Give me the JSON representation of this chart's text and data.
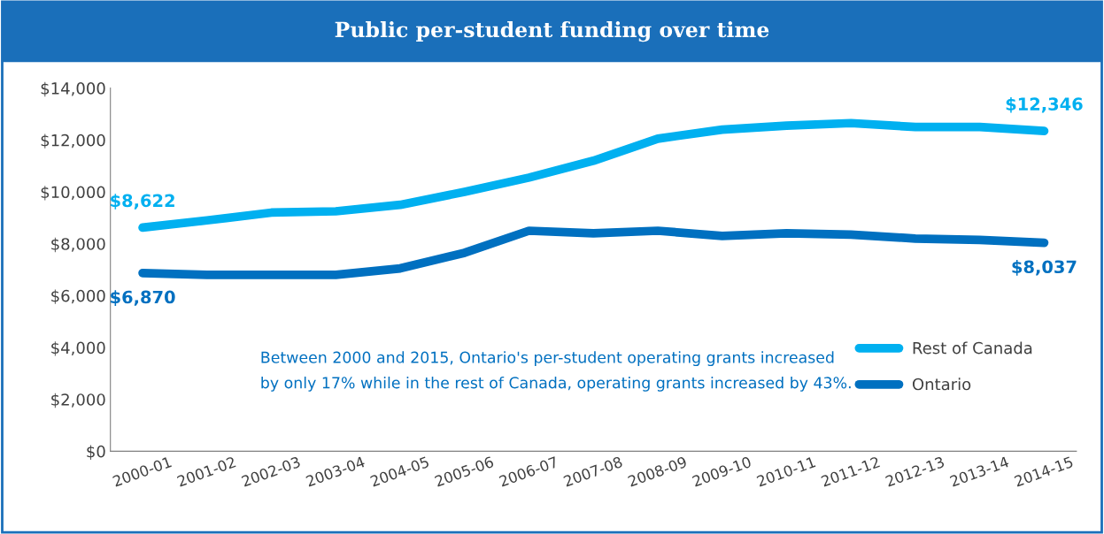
{
  "chart_data": {
    "type": "line",
    "title": "Public per-student funding over time",
    "categories": [
      "2000-01",
      "2001-02",
      "2002-03",
      "2003-04",
      "2004-05",
      "2005-06",
      "2006-07",
      "2007-08",
      "2008-09",
      "2009-10",
      "2010-11",
      "2011-12",
      "2012-13",
      "2013-14",
      "2014-15"
    ],
    "series": [
      {
        "name": "Rest of Canada",
        "color": "#00b0f0",
        "values": [
          8622,
          8900,
          9200,
          9250,
          9500,
          10000,
          10550,
          11200,
          12050,
          12400,
          12550,
          12650,
          12500,
          12500,
          12346
        ],
        "value_labels": [
          "$8,622",
          null,
          null,
          null,
          null,
          null,
          null,
          null,
          null,
          null,
          null,
          null,
          null,
          null,
          "$12,346"
        ]
      },
      {
        "name": "Ontario",
        "color": "#0070c0",
        "values": [
          6870,
          6800,
          6800,
          6800,
          7050,
          7650,
          8500,
          8400,
          8500,
          8300,
          8400,
          8350,
          8200,
          8150,
          8037
        ],
        "value_labels": [
          "$6,870",
          null,
          null,
          null,
          null,
          null,
          null,
          null,
          null,
          null,
          null,
          null,
          null,
          null,
          "$8,037"
        ]
      }
    ],
    "ylim": [
      0,
      14000
    ],
    "yticks": [
      {
        "value": 0,
        "label": "$0"
      },
      {
        "value": 2000,
        "label": "$2,000"
      },
      {
        "value": 4000,
        "label": "$4,000"
      },
      {
        "value": 6000,
        "label": "$6,000"
      },
      {
        "value": 8000,
        "label": "$8,000"
      },
      {
        "value": 10000,
        "label": "$10,000"
      },
      {
        "value": 12000,
        "label": "$12,000"
      },
      {
        "value": 14000,
        "label": "$14,000"
      }
    ],
    "annotations": [
      "Between 2000 and 2015, Ontario's per-student operating grants increased\nby only 17% while in the rest of Canada, operating grants increased by 43%."
    ],
    "grid": false,
    "legend": "lower right",
    "marker": "none",
    "line_style": "solid"
  }
}
